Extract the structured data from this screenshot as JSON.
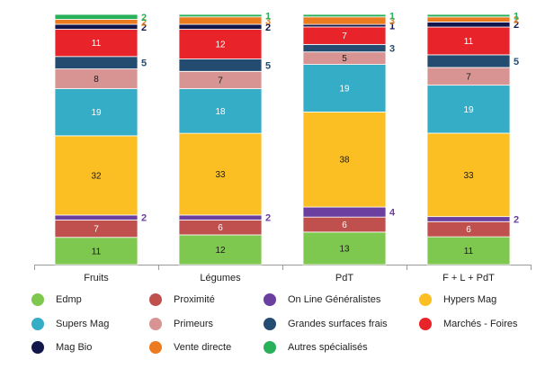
{
  "chart_data": {
    "type": "bar",
    "stacked": true,
    "categories": [
      "Fruits",
      "Légumes",
      "PdT",
      "F + L + PdT"
    ],
    "ylim": [
      0,
      100
    ],
    "series": [
      {
        "name": "Edmp",
        "color": "#7ec84f",
        "values": [
          11,
          12,
          13,
          11
        ],
        "labels": [
          "11",
          "12",
          "13",
          "11"
        ]
      },
      {
        "name": "Proximité",
        "color": "#c0504d",
        "values": [
          7,
          6,
          6,
          6
        ],
        "labels": [
          "7",
          "6",
          "6",
          "6"
        ]
      },
      {
        "name": "On Line Généralistes",
        "color": "#6a3fa0",
        "values": [
          2,
          2,
          4,
          2
        ],
        "labels": [
          "2",
          "2",
          "4",
          "2"
        ]
      },
      {
        "name": "Hypers Mag",
        "color": "#fbbf24",
        "values": [
          32,
          33,
          38,
          33
        ],
        "labels": [
          "32",
          "33",
          "38",
          "33"
        ]
      },
      {
        "name": "Supers Mag",
        "color": "#36adc6",
        "values": [
          19,
          18,
          19,
          19
        ],
        "labels": [
          "19",
          "18",
          "19",
          "19"
        ]
      },
      {
        "name": "Primeurs",
        "color": "#d89393",
        "values": [
          8,
          7,
          5,
          7
        ],
        "labels": [
          "8",
          "7",
          "5",
          "7"
        ]
      },
      {
        "name": "Grandes surfaces frais",
        "color": "#244b70",
        "values": [
          5,
          5,
          3,
          5
        ],
        "labels": [
          "5",
          "5",
          "3",
          "5"
        ]
      },
      {
        "name": "Marchés - Foires",
        "color": "#e8242a",
        "values": [
          11,
          12,
          7,
          11
        ],
        "labels": [
          "11",
          "12",
          "7",
          "11"
        ]
      },
      {
        "name": "Mag Bio",
        "color": "#13164a",
        "values": [
          2,
          2,
          1,
          2
        ],
        "labels": [
          "2",
          "2",
          "1",
          "2"
        ]
      },
      {
        "name": "Vente directe",
        "color": "#ec7a1e",
        "values": [
          2,
          3,
          3,
          2
        ],
        "labels": [
          "2",
          "3",
          "3",
          "2"
        ]
      },
      {
        "name": "Autres spécialisés",
        "color": "#29b05a",
        "values": [
          2,
          1,
          1,
          1
        ],
        "labels": [
          "2",
          "1",
          "1",
          "1"
        ]
      }
    ]
  },
  "legend": {
    "items": [
      {
        "label": "Edmp",
        "color": "#7ec84f"
      },
      {
        "label": "Proximité",
        "color": "#c0504d"
      },
      {
        "label": "On Line Généralistes",
        "color": "#6a3fa0"
      },
      {
        "label": "Hypers Mag",
        "color": "#fbbf24"
      },
      {
        "label": "Supers Mag",
        "color": "#36adc6"
      },
      {
        "label": "Primeurs",
        "color": "#d89393"
      },
      {
        "label": "Grandes surfaces frais",
        "color": "#244b70"
      },
      {
        "label": "Marchés - Foires",
        "color": "#e8242a"
      },
      {
        "label": "Mag Bio",
        "color": "#13164a"
      },
      {
        "label": "Vente directe",
        "color": "#ec7a1e"
      },
      {
        "label": "Autres spécialisés",
        "color": "#29b05a"
      }
    ]
  }
}
